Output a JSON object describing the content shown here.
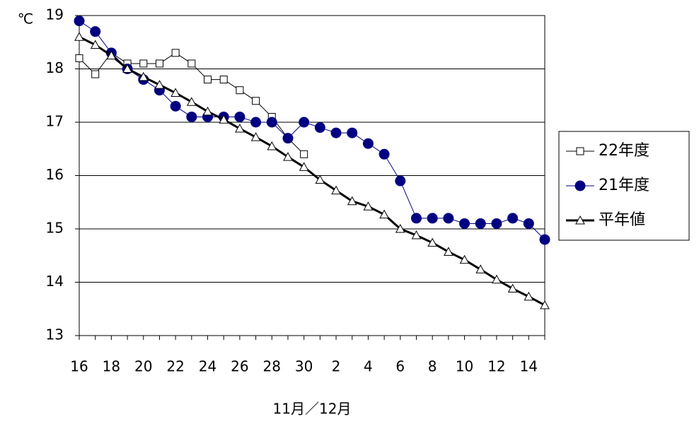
{
  "chart_data": {
    "type": "line",
    "y_label": "℃",
    "x_label": "11月／12月",
    "categories": [
      "16",
      null,
      "18",
      null,
      "20",
      null,
      "22",
      null,
      "24",
      null,
      "26",
      null,
      "28",
      null,
      "30",
      null,
      "2",
      null,
      "4",
      null,
      "6",
      null,
      "8",
      null,
      "10",
      null,
      "12",
      null,
      "14",
      null
    ],
    "ylim": [
      13,
      19
    ],
    "yticks": [
      13,
      14,
      15,
      16,
      17,
      18,
      19
    ],
    "grid": true,
    "series": [
      {
        "name": "22年度",
        "color": "#000000",
        "marker": "square",
        "filled": false,
        "line_width": 1,
        "values": [
          18.2,
          17.9,
          18.3,
          18.1,
          18.1,
          18.1,
          18.3,
          18.1,
          17.8,
          17.8,
          17.6,
          17.4,
          17.1,
          16.7,
          16.4,
          null,
          null,
          null,
          null,
          null,
          null,
          null,
          null,
          null,
          null,
          null,
          null,
          null,
          null,
          null
        ]
      },
      {
        "name": "21年度",
        "color": "#000080",
        "marker": "circle",
        "filled": true,
        "line_width": 1,
        "values": [
          18.9,
          18.7,
          18.3,
          18.0,
          17.8,
          17.6,
          17.3,
          17.1,
          17.1,
          17.1,
          17.1,
          17.0,
          17.0,
          16.7,
          17.0,
          16.9,
          16.8,
          16.8,
          16.6,
          16.4,
          15.9,
          15.2,
          15.2,
          15.2,
          15.1,
          15.1,
          15.1,
          15.2,
          15.1,
          14.8
        ]
      },
      {
        "name": "平年値",
        "color": "#000000",
        "marker": "triangle",
        "filled": false,
        "line_width": 3,
        "values": [
          18.6,
          18.45,
          18.25,
          18.0,
          17.85,
          17.7,
          17.55,
          17.38,
          17.2,
          17.05,
          16.88,
          16.72,
          16.55,
          16.35,
          16.16,
          15.92,
          15.72,
          15.52,
          15.42,
          15.27,
          15.0,
          14.88,
          14.74,
          14.57,
          14.42,
          14.24,
          14.05,
          13.88,
          13.73,
          13.57
        ]
      }
    ]
  }
}
